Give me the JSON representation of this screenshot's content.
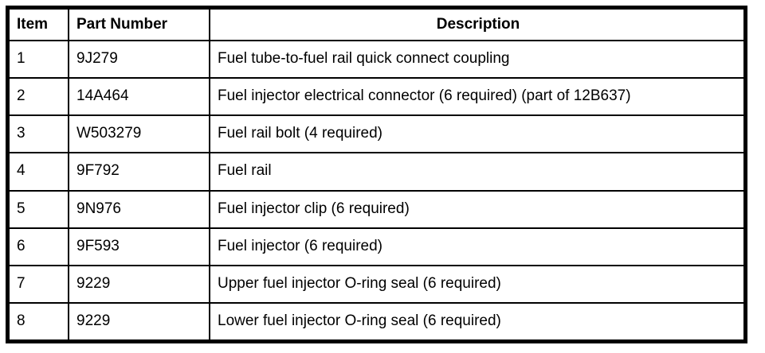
{
  "colors": {
    "text": "#000000",
    "border": "#000000",
    "background": "#ffffff"
  },
  "table": {
    "headers": {
      "item": "Item",
      "part_number": "Part Number",
      "description": "Description"
    },
    "rows": [
      {
        "item": "1",
        "part_number": "9J279",
        "description": "Fuel tube-to-fuel rail quick connect coupling"
      },
      {
        "item": "2",
        "part_number": "14A464",
        "description": "Fuel injector electrical connector (6 required) (part of 12B637)"
      },
      {
        "item": "3",
        "part_number": "W503279",
        "description": "Fuel rail bolt (4 required)"
      },
      {
        "item": "4",
        "part_number": "9F792",
        "description": "Fuel rail"
      },
      {
        "item": "5",
        "part_number": "9N976",
        "description": "Fuel injector clip (6 required)"
      },
      {
        "item": "6",
        "part_number": "9F593",
        "description": "Fuel injector (6 required)"
      },
      {
        "item": "7",
        "part_number": "9229",
        "description": "Upper fuel injector O-ring seal (6 required)"
      },
      {
        "item": "8",
        "part_number": "9229",
        "description": "Lower fuel injector O-ring seal (6 required)"
      }
    ]
  }
}
